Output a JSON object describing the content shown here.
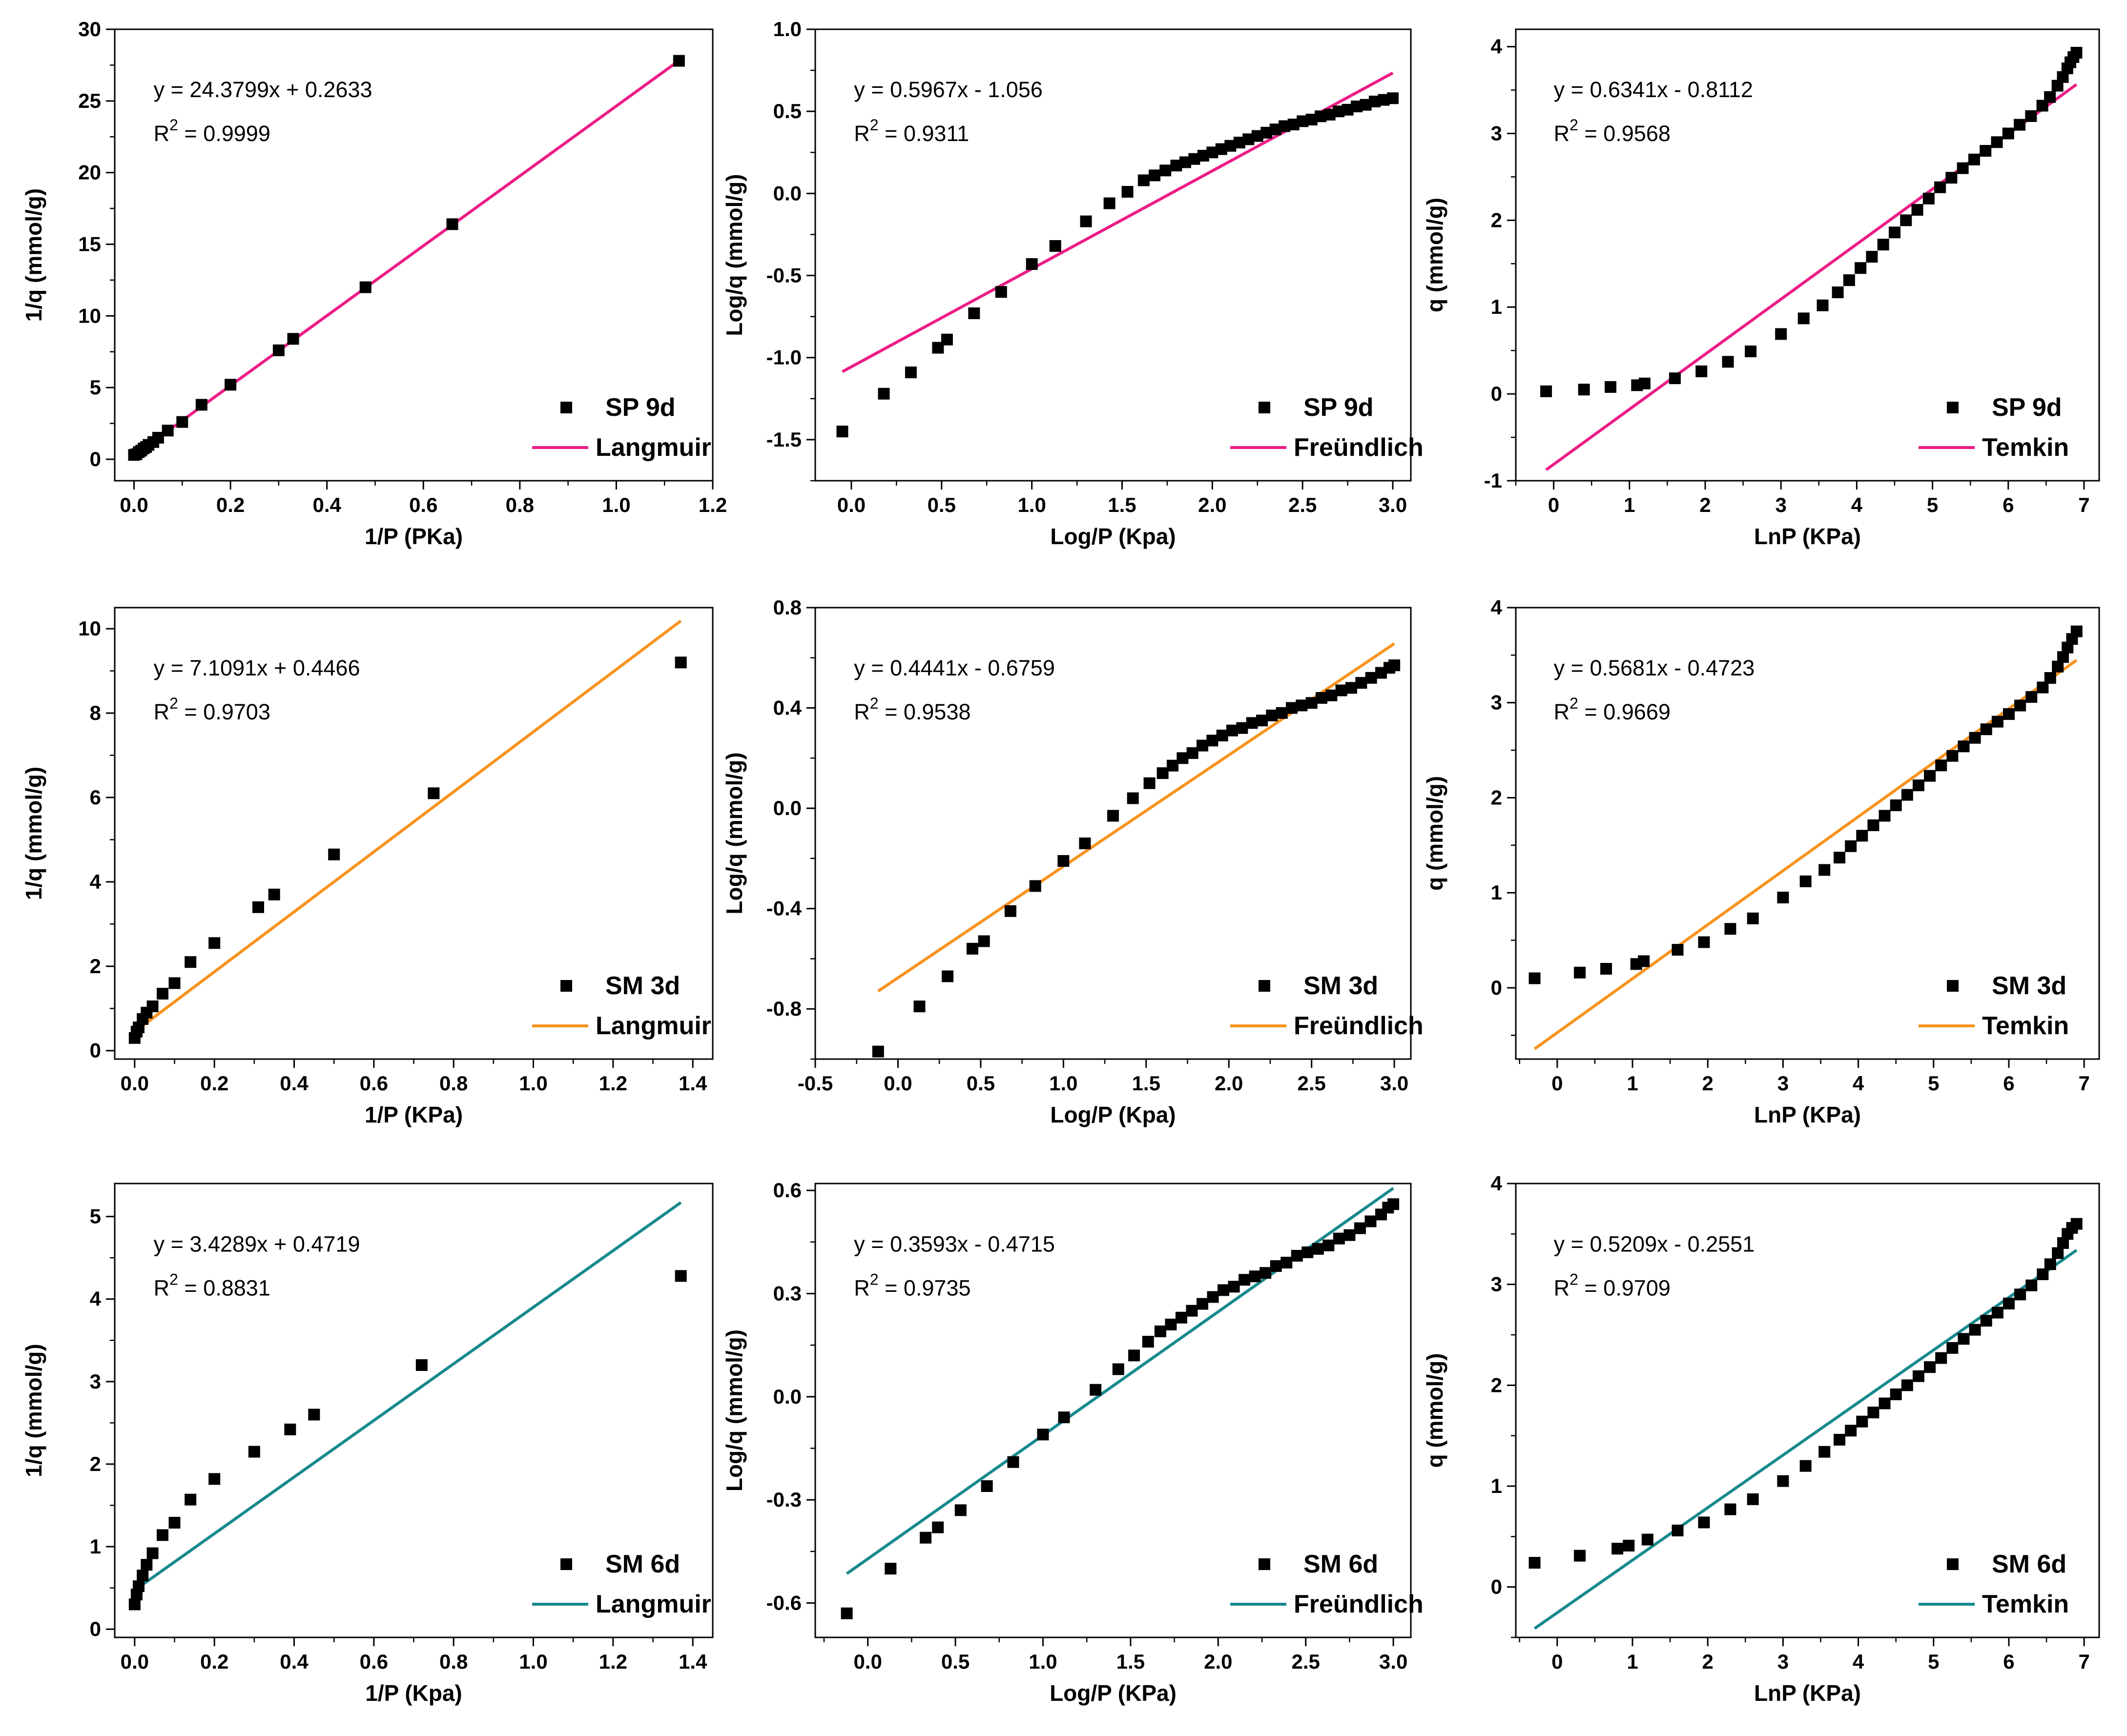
{
  "colors": {
    "langmuir_sp9d": "#ec1c87",
    "sm3d": "#f7931e",
    "sm6d": "#17898d",
    "marker": "#000000"
  },
  "chart_data": [
    {
      "id": "sp9d-langmuir",
      "type": "scatter",
      "color": "#ec1c87",
      "xlabel": "1/P (PKa)",
      "ylabel": "1/q (mmol/g)",
      "xlim": [
        -0.04,
        1.2
      ],
      "ylim": [
        -1.5,
        30
      ],
      "xticks": [
        "0.0",
        "0.2",
        "0.4",
        "0.6",
        "0.8",
        "1.0",
        "1.2"
      ],
      "yticks": [
        "0",
        "5",
        "10",
        "15",
        "20",
        "25",
        "30"
      ],
      "equation": "y = 24.3799x + 0.2633",
      "r2_prefix": "R",
      "r2_exp": "2",
      "r2_value": " = 0.9999",
      "slope": 24.3799,
      "intercept": 0.2633,
      "fit_x": [
        0.0,
        1.13
      ],
      "series_label": "SP 9d",
      "fit_label": "Langmuir",
      "x": [
        0.0,
        0.005,
        0.01,
        0.015,
        0.02,
        0.025,
        0.03,
        0.04,
        0.05,
        0.07,
        0.1,
        0.14,
        0.2,
        0.3,
        0.33,
        0.48,
        0.66,
        1.13
      ],
      "y": [
        0.3,
        0.35,
        0.5,
        0.6,
        0.75,
        0.85,
        1.0,
        1.2,
        1.5,
        2.0,
        2.6,
        3.8,
        5.2,
        7.6,
        8.4,
        12.0,
        16.4,
        27.8
      ]
    },
    {
      "id": "sp9d-freundlich",
      "type": "scatter",
      "color": "#ec1c87",
      "xlabel": "Log/P (Kpa)",
      "ylabel": "Log/q (mmol/g)",
      "xlim": [
        -0.2,
        3.1
      ],
      "ylim": [
        -1.75,
        1.0
      ],
      "xticks": [
        "0.0",
        "0.5",
        "1.0",
        "1.5",
        "2.0",
        "2.5",
        "3.0"
      ],
      "yticks": [
        "-1.5",
        "-1.0",
        "-0.5",
        "0.0",
        "0.5",
        "1.0"
      ],
      "equation": "y = 0.5967x - 1.056",
      "r2_prefix": "R",
      "r2_exp": "2",
      "r2_value": " = 0.9311",
      "slope": 0.5967,
      "intercept": -1.056,
      "fit_x": [
        -0.05,
        3.0
      ],
      "series_label": "SP 9d",
      "fit_label": "Freündlich",
      "x": [
        -0.05,
        0.18,
        0.33,
        0.48,
        0.53,
        0.68,
        0.83,
        1.0,
        1.13,
        1.3,
        1.43,
        1.53,
        1.62,
        1.68,
        1.74,
        1.8,
        1.85,
        1.9,
        1.95,
        2.0,
        2.05,
        2.1,
        2.15,
        2.2,
        2.25,
        2.3,
        2.35,
        2.4,
        2.45,
        2.5,
        2.55,
        2.6,
        2.65,
        2.7,
        2.75,
        2.8,
        2.85,
        2.9,
        2.95,
        3.0
      ],
      "y": [
        -1.45,
        -1.22,
        -1.09,
        -0.94,
        -0.89,
        -0.73,
        -0.6,
        -0.43,
        -0.32,
        -0.17,
        -0.06,
        0.01,
        0.08,
        0.11,
        0.14,
        0.17,
        0.19,
        0.21,
        0.23,
        0.25,
        0.27,
        0.29,
        0.31,
        0.33,
        0.35,
        0.37,
        0.39,
        0.41,
        0.42,
        0.44,
        0.45,
        0.47,
        0.48,
        0.5,
        0.51,
        0.53,
        0.54,
        0.56,
        0.57,
        0.58
      ]
    },
    {
      "id": "sp9d-temkin",
      "type": "scatter",
      "color": "#ec1c87",
      "xlabel": "LnP (KPa)",
      "ylabel": "q (mmol/g)",
      "xlim": [
        -0.5,
        7.2
      ],
      "ylim": [
        -1,
        4.2
      ],
      "xticks": [
        "0",
        "1",
        "2",
        "3",
        "4",
        "5",
        "6",
        "7"
      ],
      "yticks": [
        "-1",
        "0",
        "1",
        "2",
        "3",
        "4"
      ],
      "equation": "y = 0.6341x - 0.8112",
      "r2_prefix": "R",
      "r2_exp": "2",
      "r2_value": " = 0.9568",
      "slope": 0.6341,
      "intercept": -0.8112,
      "fit_x": [
        -0.1,
        6.9
      ],
      "series_label": "SP 9d",
      "fit_label": "Temkin",
      "x": [
        -0.1,
        0.4,
        0.75,
        1.1,
        1.2,
        1.6,
        1.95,
        2.3,
        2.6,
        3.0,
        3.3,
        3.55,
        3.75,
        3.9,
        4.05,
        4.2,
        4.35,
        4.5,
        4.65,
        4.8,
        4.95,
        5.1,
        5.25,
        5.4,
        5.55,
        5.7,
        5.85,
        6.0,
        6.15,
        6.3,
        6.45,
        6.55,
        6.65,
        6.72,
        6.78,
        6.82,
        6.86,
        6.9
      ],
      "y": [
        0.03,
        0.05,
        0.08,
        0.1,
        0.12,
        0.18,
        0.26,
        0.37,
        0.49,
        0.69,
        0.87,
        1.02,
        1.17,
        1.31,
        1.45,
        1.58,
        1.72,
        1.86,
        2.0,
        2.12,
        2.25,
        2.38,
        2.49,
        2.6,
        2.7,
        2.8,
        2.9,
        3.0,
        3.1,
        3.2,
        3.32,
        3.42,
        3.55,
        3.65,
        3.75,
        3.82,
        3.88,
        3.93
      ]
    },
    {
      "id": "sm3d-langmuir",
      "type": "scatter",
      "color": "#f7931e",
      "xlabel": "1/P (KPa)",
      "ylabel": "1/q (mmol/g)",
      "xlim": [
        -0.05,
        1.45
      ],
      "ylim": [
        -0.2,
        10.5
      ],
      "xticks": [
        "0.0",
        "0.2",
        "0.4",
        "0.6",
        "0.8",
        "1.0",
        "1.2",
        "1.4"
      ],
      "yticks": [
        "0",
        "2",
        "4",
        "6",
        "8",
        "10"
      ],
      "equation": "y = 7.1091x + 0.4466",
      "r2_prefix": "R",
      "r2_exp": "2",
      "r2_value": " = 0.9703",
      "slope": 7.1091,
      "intercept": 0.4466,
      "fit_x": [
        0.0,
        1.37
      ],
      "series_label": "SM 3d",
      "fit_label": "Langmuir",
      "x": [
        0.0,
        0.005,
        0.01,
        0.02,
        0.03,
        0.045,
        0.07,
        0.1,
        0.14,
        0.2,
        0.31,
        0.35,
        0.5,
        0.75,
        1.37
      ],
      "y": [
        0.3,
        0.45,
        0.55,
        0.75,
        0.9,
        1.05,
        1.35,
        1.6,
        2.1,
        2.55,
        3.4,
        3.7,
        4.65,
        6.1,
        9.2
      ]
    },
    {
      "id": "sm3d-freundlich",
      "type": "scatter",
      "color": "#f7931e",
      "xlabel": "Log/P (Kpa)",
      "ylabel": "Log/q (mmol/g)",
      "xlim": [
        -0.5,
        3.1
      ],
      "ylim": [
        -1.0,
        0.8
      ],
      "xticks": [
        "-0.5",
        "0.0",
        "0.5",
        "1.0",
        "1.5",
        "2.0",
        "2.5",
        "3.0"
      ],
      "yticks": [
        "-0.8",
        "-0.4",
        "0.0",
        "0.4",
        "0.8"
      ],
      "equation": "y = 0.4441x - 0.6759",
      "r2_prefix": "R",
      "r2_exp": "2",
      "r2_value": " = 0.9538",
      "slope": 0.4441,
      "intercept": -0.6759,
      "fit_x": [
        -0.12,
        3.0
      ],
      "series_label": "SM 3d",
      "fit_label": "Freündlich",
      "x": [
        -0.12,
        0.13,
        0.3,
        0.45,
        0.52,
        0.68,
        0.83,
        1.0,
        1.13,
        1.3,
        1.42,
        1.52,
        1.6,
        1.66,
        1.72,
        1.78,
        1.84,
        1.9,
        1.96,
        2.02,
        2.08,
        2.14,
        2.2,
        2.26,
        2.32,
        2.38,
        2.44,
        2.5,
        2.56,
        2.62,
        2.68,
        2.74,
        2.8,
        2.86,
        2.92,
        2.97,
        3.0
      ],
      "y": [
        -0.97,
        -0.79,
        -0.67,
        -0.56,
        -0.53,
        -0.41,
        -0.31,
        -0.21,
        -0.14,
        -0.03,
        0.04,
        0.1,
        0.14,
        0.17,
        0.2,
        0.22,
        0.25,
        0.27,
        0.29,
        0.31,
        0.32,
        0.34,
        0.35,
        0.37,
        0.38,
        0.4,
        0.41,
        0.42,
        0.44,
        0.45,
        0.47,
        0.48,
        0.5,
        0.52,
        0.54,
        0.56,
        0.57
      ]
    },
    {
      "id": "sm3d-temkin",
      "type": "scatter",
      "color": "#f7931e",
      "xlabel": "LnP (KPa)",
      "ylabel": "q (mmol/g)",
      "xlim": [
        -0.55,
        7.2
      ],
      "ylim": [
        -0.75,
        4.0
      ],
      "xticks": [
        "0",
        "1",
        "2",
        "3",
        "4",
        "5",
        "6",
        "7"
      ],
      "yticks": [
        "0",
        "1",
        "2",
        "3",
        "4"
      ],
      "equation": "y = 0.5681x - 0.4723",
      "r2_prefix": "R",
      "r2_exp": "2",
      "r2_value": " = 0.9669",
      "slope": 0.5681,
      "intercept": -0.4723,
      "fit_x": [
        -0.3,
        6.9
      ],
      "series_label": "SM 3d",
      "fit_label": "Temkin",
      "x": [
        -0.3,
        0.3,
        0.65,
        1.05,
        1.15,
        1.6,
        1.95,
        2.3,
        2.6,
        3.0,
        3.3,
        3.55,
        3.75,
        3.9,
        4.05,
        4.2,
        4.35,
        4.5,
        4.65,
        4.8,
        4.95,
        5.1,
        5.25,
        5.4,
        5.55,
        5.7,
        5.85,
        6.0,
        6.15,
        6.3,
        6.45,
        6.55,
        6.65,
        6.72,
        6.78,
        6.84,
        6.9
      ],
      "y": [
        0.1,
        0.16,
        0.2,
        0.25,
        0.28,
        0.4,
        0.48,
        0.62,
        0.73,
        0.95,
        1.12,
        1.24,
        1.37,
        1.49,
        1.6,
        1.71,
        1.81,
        1.92,
        2.03,
        2.13,
        2.23,
        2.34,
        2.44,
        2.54,
        2.63,
        2.72,
        2.8,
        2.88,
        2.97,
        3.06,
        3.16,
        3.26,
        3.38,
        3.48,
        3.58,
        3.67,
        3.75
      ]
    },
    {
      "id": "sm6d-langmuir",
      "type": "scatter",
      "color": "#17898d",
      "xlabel": "1/P (Kpa)",
      "ylabel": "1/q (mmol/g)",
      "xlim": [
        -0.05,
        1.45
      ],
      "ylim": [
        -0.1,
        5.4
      ],
      "xticks": [
        "0.0",
        "0.2",
        "0.4",
        "0.6",
        "0.8",
        "1.0",
        "1.2",
        "1.4"
      ],
      "yticks": [
        "0",
        "1",
        "2",
        "3",
        "4",
        "5"
      ],
      "equation": "y = 3.4289x + 0.4719",
      "r2_prefix": "R",
      "r2_exp": "2",
      "r2_value": " = 0.8831",
      "slope": 3.4289,
      "intercept": 0.4719,
      "fit_x": [
        0.0,
        1.37
      ],
      "series_label": "SM 6d",
      "fit_label": "Langmuir",
      "x": [
        0.0,
        0.005,
        0.01,
        0.02,
        0.03,
        0.045,
        0.07,
        0.1,
        0.14,
        0.2,
        0.3,
        0.39,
        0.45,
        0.72,
        1.37
      ],
      "y": [
        0.3,
        0.42,
        0.52,
        0.65,
        0.78,
        0.92,
        1.14,
        1.29,
        1.57,
        1.82,
        2.15,
        2.42,
        2.6,
        3.2,
        4.28
      ]
    },
    {
      "id": "sm6d-freundlich",
      "type": "scatter",
      "color": "#17898d",
      "xlabel": "Log/P (KPa)",
      "ylabel": "Log/q (mmol/g)",
      "xlim": [
        -0.3,
        3.1
      ],
      "ylim": [
        -0.7,
        0.62
      ],
      "xticks": [
        "0.0",
        "0.5",
        "1.0",
        "1.5",
        "2.0",
        "2.5",
        "3.0"
      ],
      "yticks": [
        "-0.6",
        "-0.3",
        "0.0",
        "0.3",
        "0.6"
      ],
      "equation": "y = 0.3593x - 0.4715",
      "r2_prefix": "R",
      "r2_exp": "2",
      "r2_value": " = 0.9735",
      "slope": 0.3593,
      "intercept": -0.4715,
      "fit_x": [
        -0.12,
        3.0
      ],
      "series_label": "SM 6d",
      "fit_label": "Freündlich",
      "x": [
        -0.12,
        0.13,
        0.33,
        0.4,
        0.53,
        0.68,
        0.83,
        1.0,
        1.12,
        1.3,
        1.43,
        1.52,
        1.6,
        1.67,
        1.73,
        1.79,
        1.85,
        1.91,
        1.97,
        2.03,
        2.09,
        2.15,
        2.21,
        2.27,
        2.33,
        2.39,
        2.45,
        2.51,
        2.57,
        2.63,
        2.69,
        2.75,
        2.81,
        2.87,
        2.93,
        2.97,
        3.0
      ],
      "y": [
        -0.63,
        -0.5,
        -0.41,
        -0.38,
        -0.33,
        -0.26,
        -0.19,
        -0.11,
        -0.06,
        0.02,
        0.08,
        0.12,
        0.16,
        0.19,
        0.21,
        0.23,
        0.25,
        0.27,
        0.29,
        0.31,
        0.32,
        0.34,
        0.35,
        0.36,
        0.38,
        0.39,
        0.41,
        0.42,
        0.43,
        0.44,
        0.46,
        0.47,
        0.49,
        0.51,
        0.53,
        0.55,
        0.56
      ]
    },
    {
      "id": "sm6d-temkin",
      "type": "scatter",
      "color": "#17898d",
      "xlabel": "LnP (KPa)",
      "ylabel": "q (mmol/g)",
      "xlim": [
        -0.55,
        7.2
      ],
      "ylim": [
        -0.5,
        4.0
      ],
      "xticks": [
        "0",
        "1",
        "2",
        "3",
        "4",
        "5",
        "6",
        "7"
      ],
      "yticks": [
        "0",
        "1",
        "2",
        "3",
        "4"
      ],
      "equation": "y = 0.5209x - 0.2551",
      "r2_prefix": "R",
      "r2_exp": "2",
      "r2_value": " = 0.9709",
      "slope": 0.5209,
      "intercept": -0.2551,
      "fit_x": [
        -0.3,
        6.9
      ],
      "series_label": "SM 6d",
      "fit_label": "Temkin",
      "x": [
        -0.3,
        0.3,
        0.8,
        0.95,
        1.2,
        1.6,
        1.95,
        2.3,
        2.6,
        3.0,
        3.3,
        3.55,
        3.75,
        3.9,
        4.05,
        4.2,
        4.35,
        4.5,
        4.65,
        4.8,
        4.95,
        5.1,
        5.25,
        5.4,
        5.55,
        5.7,
        5.85,
        6.0,
        6.15,
        6.3,
        6.45,
        6.55,
        6.65,
        6.72,
        6.78,
        6.84,
        6.9
      ],
      "y": [
        0.24,
        0.31,
        0.38,
        0.41,
        0.47,
        0.56,
        0.64,
        0.77,
        0.87,
        1.05,
        1.2,
        1.34,
        1.46,
        1.55,
        1.64,
        1.73,
        1.82,
        1.91,
        2.0,
        2.09,
        2.18,
        2.27,
        2.37,
        2.46,
        2.55,
        2.64,
        2.72,
        2.81,
        2.9,
        2.99,
        3.1,
        3.2,
        3.31,
        3.41,
        3.5,
        3.56,
        3.6
      ]
    }
  ]
}
